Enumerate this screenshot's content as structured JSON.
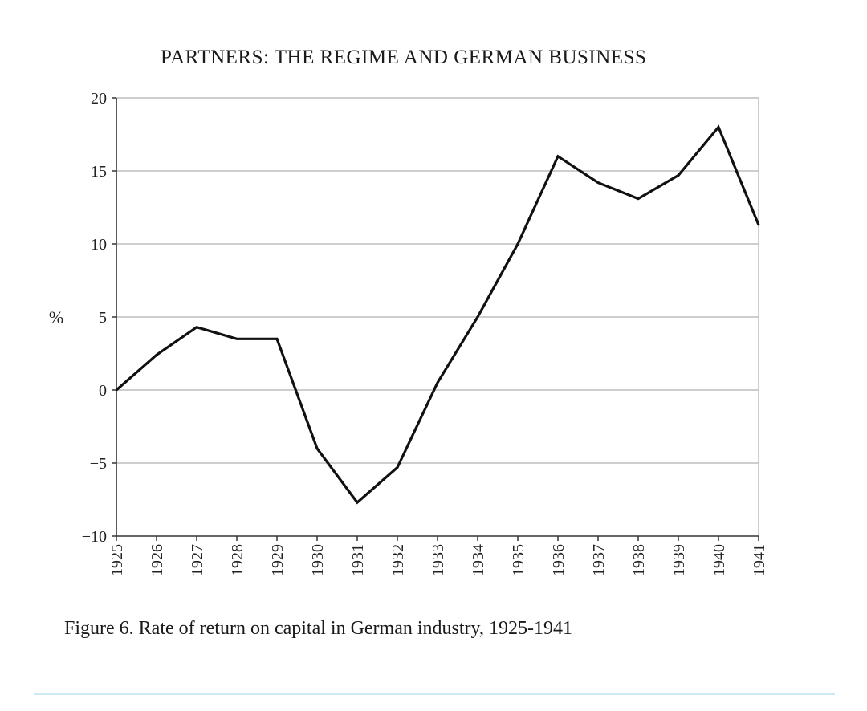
{
  "page": {
    "running_head": "PARTNERS: THE REGIME AND GERMAN BUSINESS",
    "caption": "Figure 6. Rate of return on capital in German industry, 1925-1941"
  },
  "chart_data": {
    "type": "line",
    "title": "",
    "xlabel": "",
    "ylabel": "%",
    "x": [
      "1925",
      "1926",
      "1927",
      "1928",
      "1929",
      "1930",
      "1931",
      "1932",
      "1933",
      "1934",
      "1935",
      "1936",
      "1937",
      "1938",
      "1939",
      "1940",
      "1941"
    ],
    "series": [
      {
        "values": [
          0,
          2.4,
          4.3,
          3.5,
          3.5,
          -4.0,
          -7.7,
          -5.3,
          0.5,
          5.0,
          10.0,
          16.0,
          14.2,
          13.1,
          14.7,
          18.0,
          11.3
        ]
      }
    ],
    "ylim": [
      -10,
      20
    ],
    "yticks": [
      -10,
      -5,
      0,
      5,
      10,
      15,
      20
    ],
    "ytick_labels": [
      "−10",
      "−5",
      "0",
      "5",
      "10",
      "15",
      "20"
    ],
    "grid": true,
    "line_color": "#111111",
    "grid_color": "#bdbdbd"
  }
}
